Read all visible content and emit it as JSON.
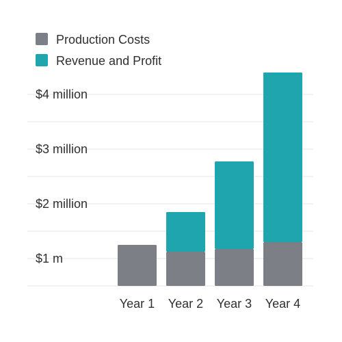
{
  "chart_data": {
    "type": "bar",
    "stacked": true,
    "title": "",
    "xlabel": "",
    "ylabel": "",
    "categories": [
      "Year 1",
      "Year 2",
      "Year 3",
      "Year 4"
    ],
    "series": [
      {
        "name": "Production Costs",
        "color": "#7d7f86",
        "values": [
          1.5,
          1.25,
          1.35,
          1.6
        ]
      },
      {
        "name": "Revenue and Profit",
        "color": "#1ea5ae",
        "values": [
          0,
          1.45,
          3.2,
          6.2
        ]
      }
    ],
    "y_ticks": [
      {
        "value": 1,
        "label": "$1 m"
      },
      {
        "value": 3,
        "label": "$2 million"
      },
      {
        "value": 5,
        "label": "$3 million"
      },
      {
        "value": 7,
        "label": "$4 million"
      }
    ],
    "ylim": [
      0,
      8
    ],
    "grid": true,
    "legend_position": "top-left"
  }
}
